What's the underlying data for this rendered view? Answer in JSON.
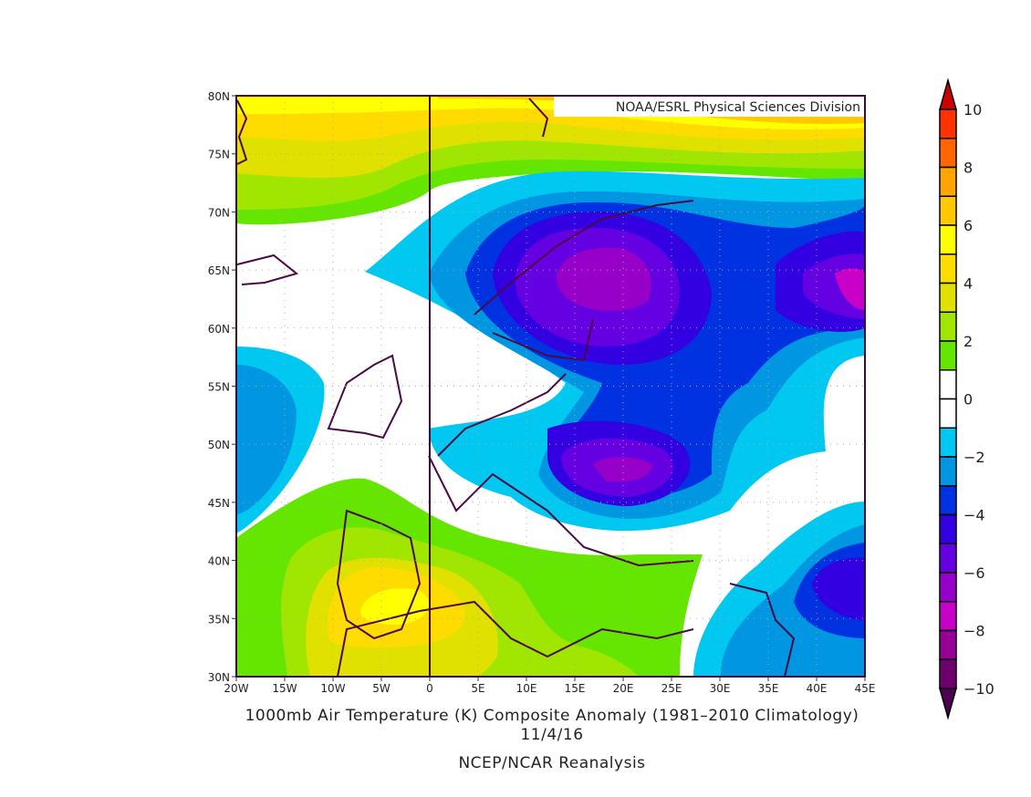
{
  "map": {
    "credit": "NOAA/ESRL Physical Sciences Division",
    "x_ticks": [
      "20W",
      "15W",
      "10W",
      "5W",
      "0",
      "5E",
      "10E",
      "15E",
      "20E",
      "25E",
      "30E",
      "35E",
      "40E",
      "45E"
    ],
    "y_ticks": [
      "30N",
      "35N",
      "40N",
      "45N",
      "50N",
      "55N",
      "60N",
      "65N",
      "70N",
      "75N",
      "80N"
    ],
    "title": "1000mb Air Temperature (K) Composite Anomaly (1981–2010 Climatology)",
    "date": "11/4/16",
    "source": "NCEP/NCAR Reanalysis"
  },
  "colorbar": {
    "labels": [
      "10",
      "8",
      "6",
      "4",
      "2",
      "0",
      "−2",
      "−4",
      "−6",
      "−8",
      "−10"
    ],
    "over_color": "#cc0000",
    "under_color": "#500050",
    "colors": [
      "#ff3300",
      "#ff6600",
      "#ffa500",
      "#ffc800",
      "#ffff00",
      "#ffdc00",
      "#e1e100",
      "#a0e600",
      "#64e600",
      "#ffffff",
      "#ffffff",
      "#00c8f0",
      "#0096e1",
      "#0032e1",
      "#3200e1",
      "#6400e1",
      "#9600c8",
      "#c800c8",
      "#960096",
      "#6e006e"
    ]
  }
}
